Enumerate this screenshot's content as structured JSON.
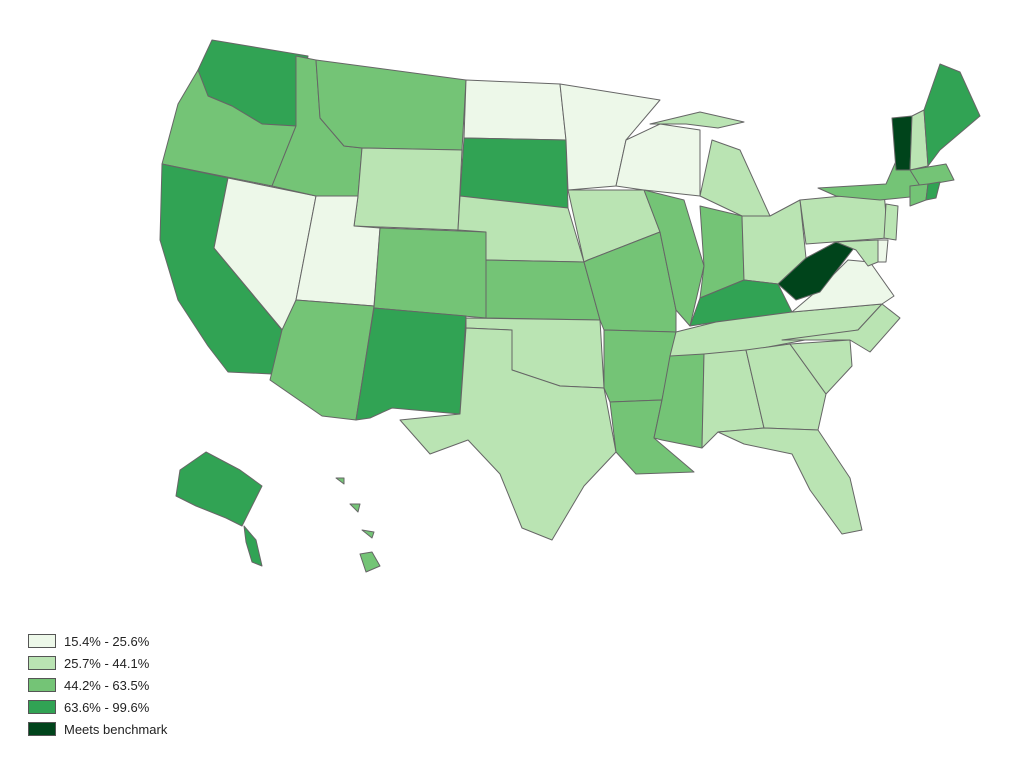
{
  "legend": {
    "items": [
      {
        "label": "15.4% - 25.6%",
        "color": "#edf8e9"
      },
      {
        "label": "25.7% - 44.1%",
        "color": "#bae4b3"
      },
      {
        "label": "44.2% - 63.5%",
        "color": "#74c476"
      },
      {
        "label": "63.6% - 99.6%",
        "color": "#31a354"
      },
      {
        "label": "Meets benchmark",
        "color": "#00441b"
      }
    ]
  },
  "states": [
    {
      "name": "WA",
      "cls": 4
    },
    {
      "name": "OR",
      "cls": 3
    },
    {
      "name": "CA",
      "cls": 4
    },
    {
      "name": "NV",
      "cls": 1
    },
    {
      "name": "ID",
      "cls": 3
    },
    {
      "name": "MT",
      "cls": 3
    },
    {
      "name": "WY",
      "cls": 2
    },
    {
      "name": "UT",
      "cls": 1
    },
    {
      "name": "AZ",
      "cls": 3
    },
    {
      "name": "CO",
      "cls": 3
    },
    {
      "name": "NM",
      "cls": 4
    },
    {
      "name": "ND",
      "cls": 1
    },
    {
      "name": "SD",
      "cls": 4
    },
    {
      "name": "NE",
      "cls": 2
    },
    {
      "name": "KS",
      "cls": 3
    },
    {
      "name": "OK",
      "cls": 2
    },
    {
      "name": "TX",
      "cls": 2
    },
    {
      "name": "MN",
      "cls": 1
    },
    {
      "name": "IA",
      "cls": 2
    },
    {
      "name": "MO",
      "cls": 3
    },
    {
      "name": "AR",
      "cls": 3
    },
    {
      "name": "LA",
      "cls": 3
    },
    {
      "name": "WI",
      "cls": 1
    },
    {
      "name": "IL",
      "cls": 3
    },
    {
      "name": "MI",
      "cls": 2
    },
    {
      "name": "IN",
      "cls": 3
    },
    {
      "name": "OH",
      "cls": 2
    },
    {
      "name": "KY",
      "cls": 4
    },
    {
      "name": "TN",
      "cls": 2
    },
    {
      "name": "MS",
      "cls": 3
    },
    {
      "name": "AL",
      "cls": 2
    },
    {
      "name": "GA",
      "cls": 2
    },
    {
      "name": "FL",
      "cls": 2
    },
    {
      "name": "SC",
      "cls": 2
    },
    {
      "name": "NC",
      "cls": 2
    },
    {
      "name": "VA",
      "cls": 1
    },
    {
      "name": "WV",
      "cls": 5
    },
    {
      "name": "PA",
      "cls": 2
    },
    {
      "name": "NY",
      "cls": 3
    },
    {
      "name": "VT",
      "cls": 5
    },
    {
      "name": "NH",
      "cls": 2
    },
    {
      "name": "ME",
      "cls": 4
    },
    {
      "name": "MA",
      "cls": 3
    },
    {
      "name": "CT",
      "cls": 3
    },
    {
      "name": "RI",
      "cls": 4
    },
    {
      "name": "NJ",
      "cls": 2
    },
    {
      "name": "DE",
      "cls": 1
    },
    {
      "name": "MD",
      "cls": 2
    },
    {
      "name": "AK",
      "cls": 4
    },
    {
      "name": "HI",
      "cls": 3
    }
  ]
}
